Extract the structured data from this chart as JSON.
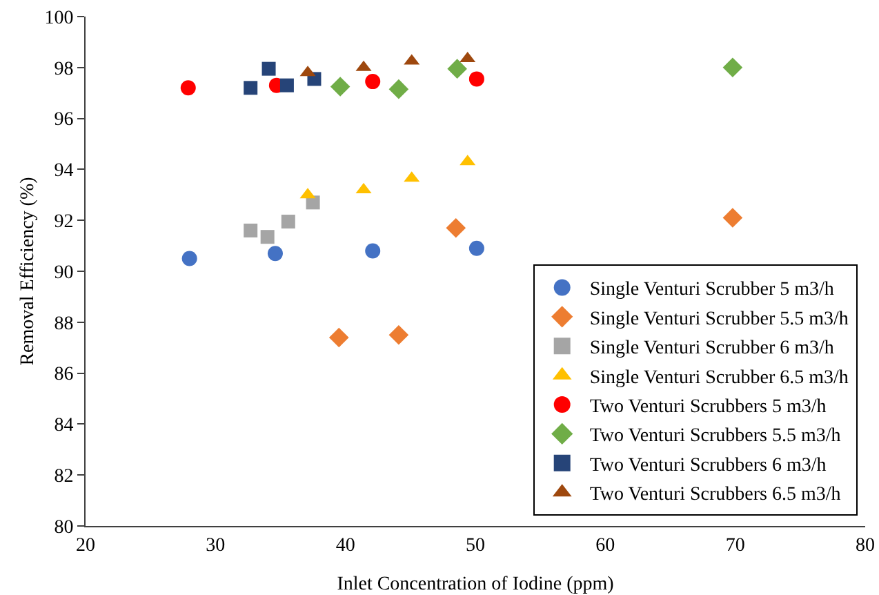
{
  "chart_data": {
    "type": "scatter",
    "xlabel": "Inlet Concentration of Iodine (ppm)",
    "ylabel": "Removal Efficiency (%)",
    "xlim": [
      20,
      80
    ],
    "xticks": [
      20,
      30,
      40,
      50,
      60,
      70,
      80
    ],
    "ylim": [
      80,
      100
    ],
    "yticks": [
      80,
      82,
      84,
      86,
      88,
      90,
      92,
      94,
      96,
      98,
      100
    ],
    "grid": false,
    "legend": "bottom right",
    "series": [
      {
        "name": "Single Venturi Scrubber 5 m3/h",
        "color": "#4472c4",
        "marker": "circle",
        "x": [
          28,
          34.6,
          42.1,
          50.1
        ],
        "values": [
          90.5,
          90.7,
          90.8,
          90.9
        ]
      },
      {
        "name": "Single Venturi Scrubber 5.5 m3/h",
        "color": "#ed7d31",
        "marker": "diamond",
        "x": [
          39.5,
          44.1,
          48.5,
          69.8
        ],
        "values": [
          87.4,
          87.5,
          91.7,
          92.1
        ]
      },
      {
        "name": "Single Venturi Scrubber 6 m3/h",
        "color": "#a5a5a5",
        "marker": "square",
        "x": [
          32.7,
          34,
          35.6,
          37.5
        ],
        "values": [
          91.6,
          91.35,
          91.95,
          92.7
        ]
      },
      {
        "name": "Single Venturi Scrubber 6.5 m3/h",
        "color": "#ffc000",
        "marker": "triangle",
        "x": [
          37.1,
          41.4,
          45.1,
          49.4
        ],
        "values": [
          93,
          93.2,
          93.65,
          94.3
        ]
      },
      {
        "name": "Two Venturi Scrubbers 5 m3/h",
        "color": "#ff0000",
        "marker": "circle",
        "x": [
          27.9,
          34.7,
          42.1,
          50.1
        ],
        "values": [
          97.2,
          97.3,
          97.45,
          97.55
        ]
      },
      {
        "name": "Two Venturi Scrubbers 5.5 m3/h",
        "color": "#70ad47",
        "marker": "diamond",
        "x": [
          39.6,
          44.1,
          48.6,
          69.8
        ],
        "values": [
          97.25,
          97.15,
          97.95,
          98
        ]
      },
      {
        "name": "Two Venturi Scrubbers 6 m3/h",
        "color": "#264478",
        "marker": "square",
        "x": [
          32.7,
          34.1,
          35.5,
          37.6
        ],
        "values": [
          97.2,
          97.95,
          97.3,
          97.55
        ]
      },
      {
        "name": "Two Venturi Scrubbers 6.5 m3/h",
        "color": "#9e480e",
        "marker": "triangle",
        "x": [
          37.1,
          41.4,
          45.1,
          49.4
        ],
        "values": [
          97.8,
          98,
          98.25,
          98.35
        ]
      }
    ]
  }
}
